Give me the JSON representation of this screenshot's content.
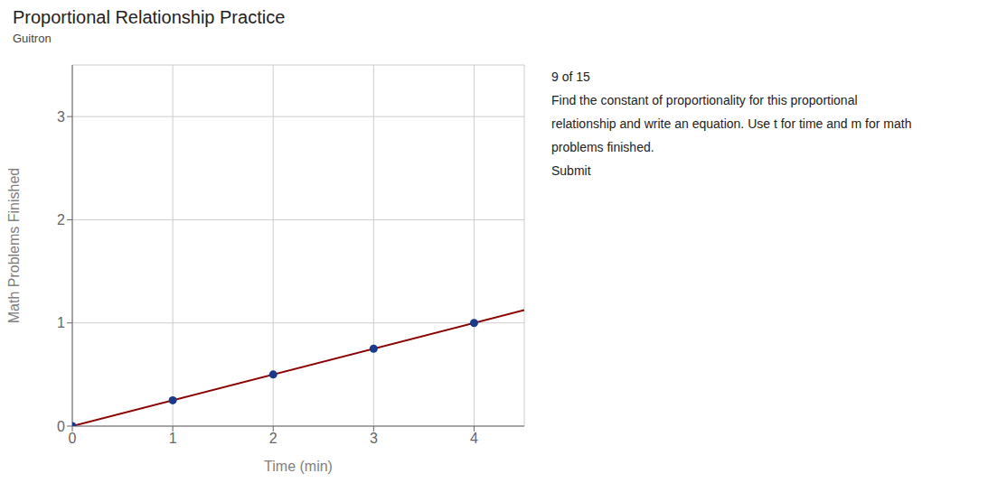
{
  "chart_data": {
    "type": "line",
    "title": "Proportional Relationship Practice",
    "subtitle": "Guitron",
    "x_label": "Time (min)",
    "y_label": "Math Problems Finished",
    "xlim": [
      0,
      4.5
    ],
    "ylim": [
      0,
      3.5
    ],
    "xticks": [
      0,
      1,
      2,
      3,
      4
    ],
    "yticks": [
      0,
      1,
      2,
      3
    ],
    "grid": true,
    "series": [
      {
        "type": "line",
        "color": "#8B0000",
        "x": [
          0,
          4.5
        ],
        "values": [
          0,
          1.125
        ]
      },
      {
        "type": "scatter",
        "color": "#1a3a8c",
        "x": [
          0,
          1,
          2,
          3,
          4
        ],
        "values": [
          0,
          0.25,
          0.5,
          0.75,
          1.0
        ]
      }
    ],
    "annotations": [
      "9 of 15",
      "Find the constant of proportionality for this proportional",
      "relationship and write an equation.  Use t for time and m for math",
      "problems finished.",
      "Submit"
    ]
  }
}
